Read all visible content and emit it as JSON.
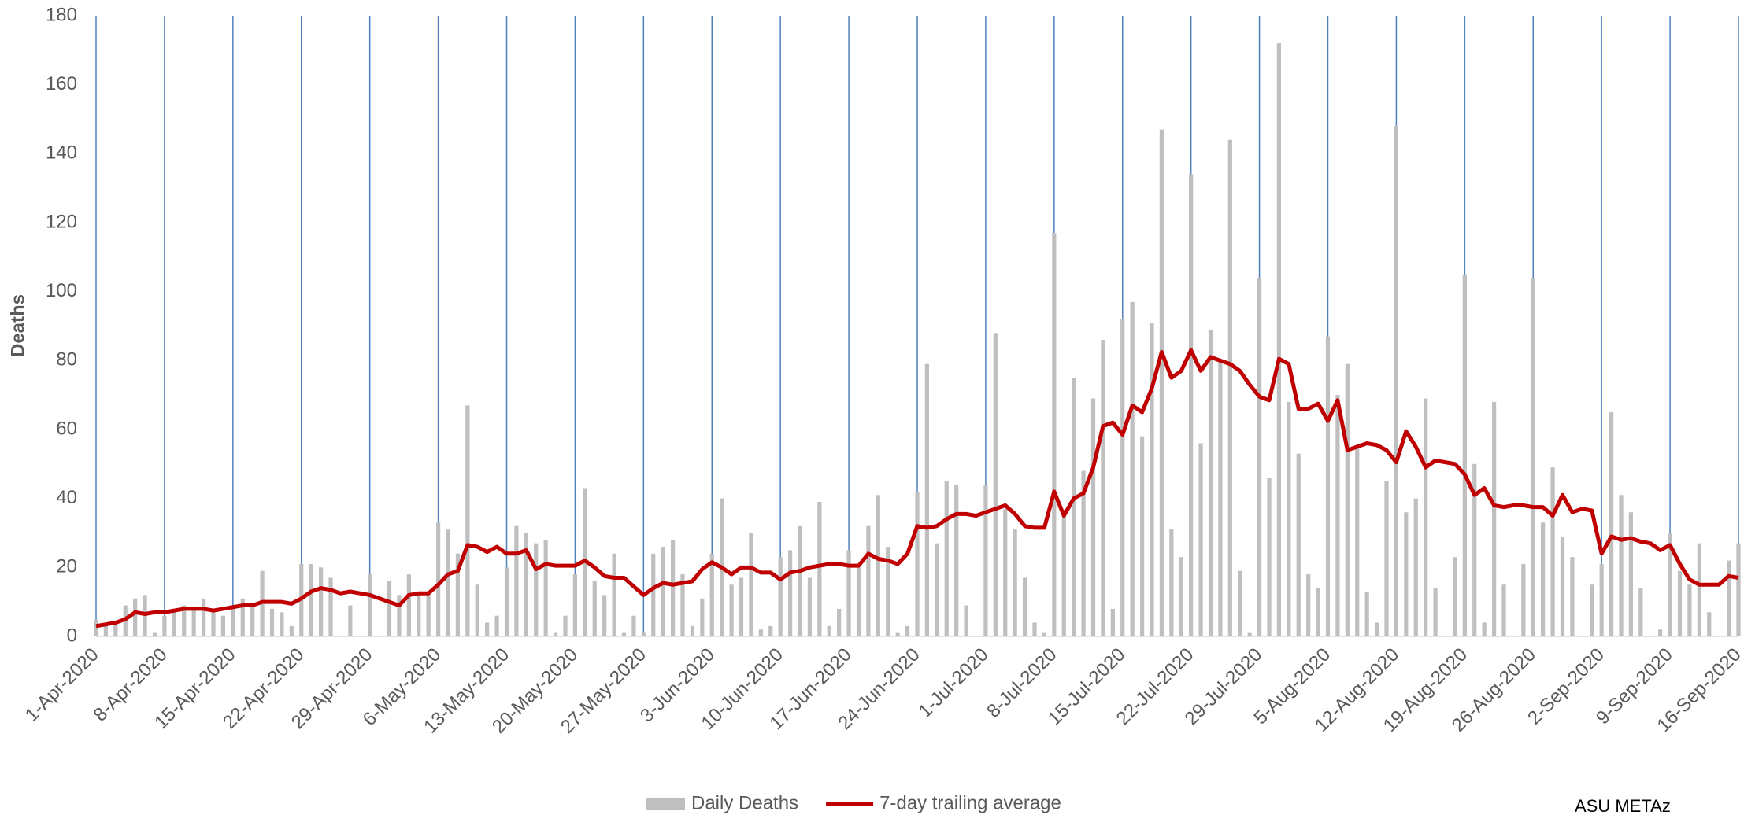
{
  "chart_data": {
    "type": "bar",
    "y_label": "Deaths",
    "annotation": "ASU METAz",
    "ylim": [
      0,
      180
    ],
    "yticks": [
      0,
      20,
      40,
      60,
      80,
      100,
      120,
      140,
      160,
      180
    ],
    "grid": true,
    "grid_color": "#4f81bd",
    "legend": "bottom",
    "categories": [
      "1-Apr-2020",
      null,
      null,
      null,
      null,
      null,
      null,
      "8-Apr-2020",
      null,
      null,
      null,
      null,
      null,
      null,
      "15-Apr-2020",
      null,
      null,
      null,
      null,
      null,
      null,
      "22-Apr-2020",
      null,
      null,
      null,
      null,
      null,
      null,
      "29-Apr-2020",
      null,
      null,
      null,
      null,
      null,
      null,
      "6-May-2020",
      null,
      null,
      null,
      null,
      null,
      null,
      "13-May-2020",
      null,
      null,
      null,
      null,
      null,
      null,
      "20-May-2020",
      null,
      null,
      null,
      null,
      null,
      null,
      "27-May-2020",
      null,
      null,
      null,
      null,
      null,
      null,
      "3-Jun-2020",
      null,
      null,
      null,
      null,
      null,
      null,
      "10-Jun-2020",
      null,
      null,
      null,
      null,
      null,
      null,
      "17-Jun-2020",
      null,
      null,
      null,
      null,
      null,
      null,
      "24-Jun-2020",
      null,
      null,
      null,
      null,
      null,
      null,
      "1-Jul-2020",
      null,
      null,
      null,
      null,
      null,
      null,
      "8-Jul-2020",
      null,
      null,
      null,
      null,
      null,
      null,
      "15-Jul-2020",
      null,
      null,
      null,
      null,
      null,
      null,
      "22-Jul-2020",
      null,
      null,
      null,
      null,
      null,
      null,
      "29-Jul-2020",
      null,
      null,
      null,
      null,
      null,
      null,
      "5-Aug-2020",
      null,
      null,
      null,
      null,
      null,
      null,
      "12-Aug-2020",
      null,
      null,
      null,
      null,
      null,
      null,
      "19-Aug-2020",
      null,
      null,
      null,
      null,
      null,
      null,
      "26-Aug-2020",
      null,
      null,
      null,
      null,
      null,
      null,
      "2-Sep-2020",
      null,
      null,
      null,
      null,
      null,
      null,
      "9-Sep-2020",
      null,
      null,
      null,
      null,
      null,
      null,
      "16-Sep-2020"
    ],
    "series": [
      {
        "name": "Daily Deaths",
        "type": "bar",
        "color": "#bfbfbf",
        "values": [
          5,
          3,
          4,
          9,
          11,
          12,
          1,
          6,
          7,
          9,
          8,
          11,
          8,
          6,
          8,
          11,
          9,
          19,
          8,
          7,
          3,
          21,
          21,
          20,
          17,
          0,
          9,
          0,
          18,
          0,
          16,
          12,
          18,
          13,
          12,
          33,
          31,
          24,
          67,
          15,
          4,
          6,
          20,
          32,
          30,
          27,
          28,
          1,
          6,
          18,
          43,
          16,
          12,
          24,
          1,
          6,
          1,
          24,
          26,
          28,
          18,
          3,
          11,
          24,
          40,
          15,
          17,
          30,
          2,
          3,
          23,
          25,
          32,
          17,
          39,
          3,
          8,
          25,
          20,
          32,
          41,
          26,
          1,
          3,
          42,
          79,
          27,
          45,
          44,
          9,
          0,
          44,
          88,
          37,
          31,
          17,
          4,
          1,
          117,
          36,
          75,
          48,
          69,
          86,
          8,
          92,
          97,
          58,
          91,
          147,
          31,
          23,
          134,
          56,
          89,
          80,
          144,
          19,
          1,
          104,
          46,
          172,
          68,
          53,
          18,
          14,
          87,
          70,
          79,
          55,
          13,
          4,
          45,
          148,
          36,
          40,
          69,
          14,
          0,
          23,
          105,
          50,
          4,
          68,
          15,
          0,
          21,
          104,
          33,
          49,
          29,
          23,
          0,
          15,
          21,
          65,
          41,
          36,
          14,
          0,
          2,
          30,
          19,
          15,
          27,
          7,
          0,
          22,
          27
        ]
      },
      {
        "name": "7-day trailing average",
        "type": "line",
        "color": "#c00000",
        "values": [
          3,
          3.5,
          4,
          5,
          7,
          6.5,
          7,
          7,
          7.5,
          8,
          8,
          8,
          7.5,
          8,
          8.5,
          9,
          9,
          10,
          10,
          10,
          9.5,
          11,
          13,
          14,
          13.5,
          12.5,
          13,
          12.5,
          12,
          11,
          10,
          9,
          12,
          12.5,
          12.5,
          15,
          18,
          19,
          26.5,
          26,
          24.5,
          26,
          24,
          24,
          25,
          19.5,
          21,
          20.5,
          20.5,
          20.5,
          22,
          20,
          17.5,
          17,
          17,
          14.5,
          12,
          14,
          15.5,
          15,
          15.5,
          16,
          19.5,
          21.5,
          20,
          18,
          20,
          20,
          18.5,
          18.5,
          16.5,
          18.5,
          19,
          20,
          20.5,
          21,
          21,
          20.5,
          20.5,
          24,
          22.5,
          22,
          21,
          24,
          32,
          31.5,
          32,
          34,
          35.5,
          35.5,
          35,
          36,
          37,
          38,
          35.5,
          32,
          31.5,
          31.5,
          42,
          35,
          40,
          41.5,
          49,
          61,
          62,
          58.5,
          67,
          65,
          72,
          82.5,
          75,
          77,
          83,
          77,
          81,
          80,
          79,
          77,
          73,
          69.5,
          68.5,
          80.5,
          79,
          66,
          66,
          67.5,
          62.5,
          68.5,
          54,
          55,
          56,
          55.5,
          54,
          50.5,
          59.5,
          55,
          49,
          51,
          50.5,
          50,
          47,
          41,
          43,
          38,
          37.5,
          38,
          38,
          37.5,
          37.5,
          35,
          41,
          36,
          37,
          36.5,
          24,
          29,
          28,
          28.5,
          27.5,
          27,
          25,
          26.5,
          21,
          16.5,
          15,
          15,
          15,
          17.5,
          17
        ]
      }
    ]
  }
}
